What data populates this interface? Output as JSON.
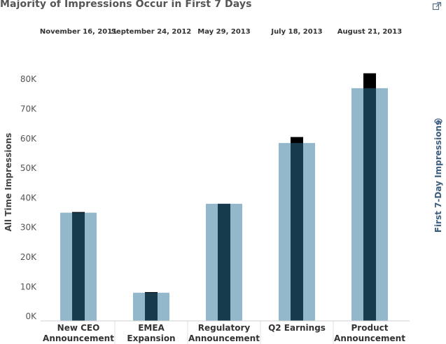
{
  "title": "Majority of Impressions Occur in First 7 Days",
  "icons": {
    "external": "external-link-icon",
    "legend": "legend-eye-icon"
  },
  "colors": {
    "all_time": "#93b8cb",
    "first7": "#173a4d",
    "overflow": "#000000"
  },
  "chart_data": {
    "type": "bar",
    "categories": [
      [
        "New CEO",
        "Announcement"
      ],
      [
        "EMEA",
        "Expansion"
      ],
      [
        "Regulatory",
        "Announcement"
      ],
      [
        "Q2 Earnings"
      ],
      [
        "Product",
        "Announcement"
      ]
    ],
    "dates": [
      "November 16, 2011",
      "September 24, 2012",
      "May 29, 2013",
      "July 18, 2013",
      "August 21, 2013"
    ],
    "series": [
      {
        "name": "All Time Impressions",
        "values": [
          35000,
          8000,
          38000,
          58500,
          77000
        ]
      },
      {
        "name": "First 7-Day Impressions",
        "values": [
          35200,
          8200,
          38000,
          60500,
          82000
        ]
      }
    ],
    "ylabel": "All Time Impressions",
    "ylabel_right": "First 7-Day Impressions",
    "ylim": [
      -1500,
      85000
    ],
    "yticks": [
      0,
      10000,
      20000,
      30000,
      40000,
      50000,
      60000,
      70000,
      80000
    ],
    "ytick_labels": [
      "0K",
      "10K",
      "20K",
      "30K",
      "40K",
      "50K",
      "60K",
      "70K",
      "80K"
    ],
    "grid": false
  }
}
